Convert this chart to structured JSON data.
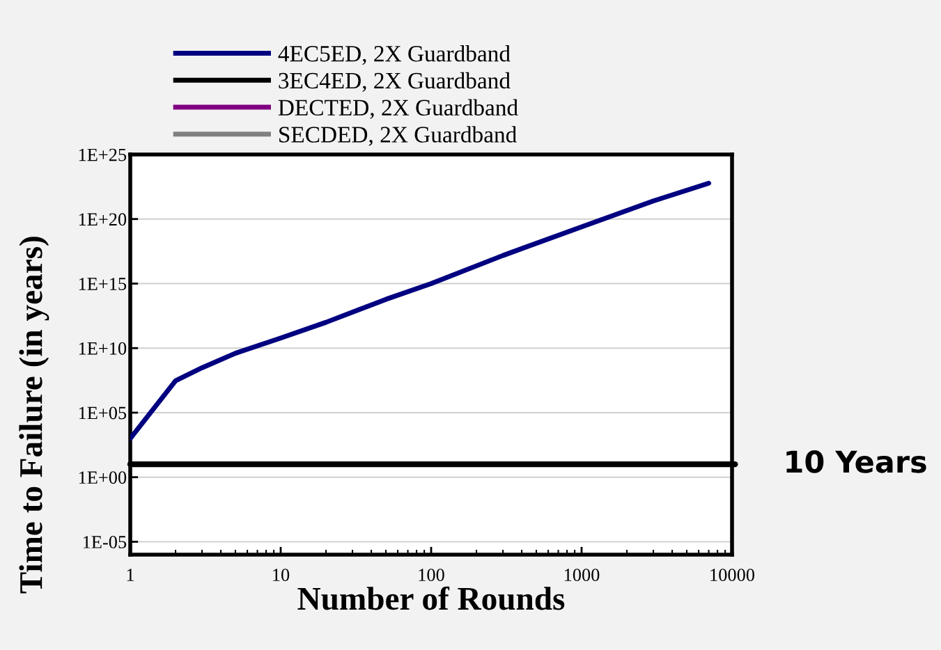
{
  "chart_data": {
    "type": "line",
    "xlabel": "Number of Rounds",
    "ylabel": "Time to Failure (in years)",
    "x": [
      1,
      2,
      3,
      5,
      10,
      20,
      50,
      100,
      300,
      1000,
      3000,
      7000
    ],
    "series": [
      {
        "name": "4EC5ED, 2X Guardband",
        "color": "#000080",
        "values": [
          1000.0,
          30000000.0,
          300000000.0,
          4000000000.0,
          60000000000.0,
          1000000000000.0,
          60000000000000.0,
          1000000000000000.0,
          1.5e+17,
          2.5e+19,
          2.5e+21,
          6e+22
        ]
      },
      {
        "name": "3EC4ED, 2X Guardband",
        "color": "#000000",
        "values": [
          null,
          null,
          null,
          null,
          null,
          null,
          null,
          null,
          null,
          null,
          null,
          null
        ]
      },
      {
        "name": "DECTED, 2X Guardband",
        "color": "#800080",
        "values": [
          null,
          null,
          null,
          null,
          null,
          null,
          null,
          null,
          null,
          null,
          null,
          null
        ]
      },
      {
        "name": "SECDED, 2X Guardband",
        "color": "#808080",
        "values": [
          null,
          null,
          null,
          null,
          null,
          null,
          null,
          null,
          null,
          null,
          null,
          null
        ]
      }
    ],
    "log": "xy",
    "xlim": [
      1,
      10000
    ],
    "xticks": [
      1,
      10,
      100,
      1000,
      10000
    ],
    "ylim": [
      1e-06,
      1e+25
    ],
    "yticks": [
      {
        "value": 1e-05,
        "label": "1E-05"
      },
      {
        "value": 1,
        "label": "1E+00"
      },
      {
        "value": 100000.0,
        "label": "1E+05"
      },
      {
        "value": 10000000000.0,
        "label": "1E+10"
      },
      {
        "value": 1000000000000000.0,
        "label": "1E+15"
      },
      {
        "value": 1e+20,
        "label": "1E+20"
      },
      {
        "value": 1e+25,
        "label": "1E+25"
      }
    ],
    "ref_lines": [
      {
        "axis": "y",
        "value": 10,
        "label": "10 Years",
        "color": "#000000",
        "line_style": "solid"
      }
    ],
    "grid": "y",
    "legend": "top",
    "marker": "none",
    "line_style": "solid"
  }
}
